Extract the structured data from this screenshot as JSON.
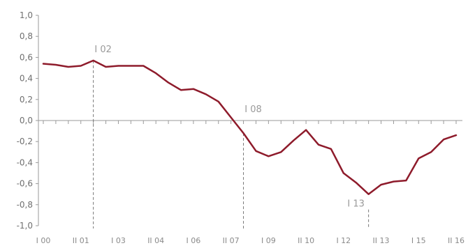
{
  "chart_data": {
    "type": "line",
    "title": "",
    "xlabel": "",
    "ylabel": "",
    "ylim": [
      -1.0,
      1.0
    ],
    "y_ticks": [
      "1,0",
      "0,8",
      "0,6",
      "0,4",
      "0,2",
      "0,0",
      "-0,2",
      "-0,4",
      "-0,6",
      "-0,8",
      "-1,0"
    ],
    "x_tick_labels": [
      {
        "label": "I 00",
        "index": 0
      },
      {
        "label": "II 01",
        "index": 3
      },
      {
        "label": "I 03",
        "index": 6
      },
      {
        "label": "II 04",
        "index": 9
      },
      {
        "label": "I 06",
        "index": 12
      },
      {
        "label": "II 07",
        "index": 15
      },
      {
        "label": "I 09",
        "index": 18
      },
      {
        "label": "II 10",
        "index": 21
      },
      {
        "label": "I 12",
        "index": 24
      },
      {
        "label": "II 13",
        "index": 27
      },
      {
        "label": "I 15",
        "index": 30
      },
      {
        "label": "II 16",
        "index": 33
      }
    ],
    "num_periods": 34,
    "color": "#8e1b2b",
    "grid": false,
    "legend": "none",
    "series": [
      {
        "values": [
          0.54,
          0.53,
          0.51,
          0.52,
          0.57,
          0.51,
          0.52,
          0.52,
          0.52,
          0.45,
          0.36,
          0.29,
          0.3,
          0.25,
          0.18,
          0.03,
          -0.12,
          -0.29,
          -0.34,
          -0.3,
          -0.19,
          -0.09,
          -0.23,
          -0.27,
          -0.5,
          -0.59,
          -0.7,
          -0.61,
          -0.58,
          -0.57,
          -0.36,
          -0.3,
          -0.18,
          -0.14
        ]
      }
    ],
    "annotations": [
      {
        "label": "I 02",
        "index": 4,
        "value": 0.57
      },
      {
        "label": "I 08",
        "index": 16,
        "value": -0.12
      },
      {
        "label": "I 13",
        "index": 26,
        "value": -0.7
      }
    ]
  }
}
